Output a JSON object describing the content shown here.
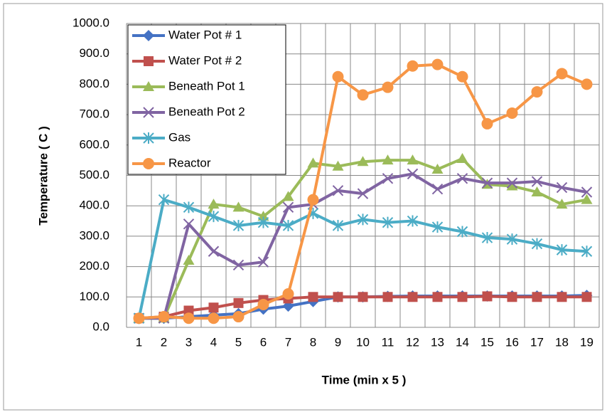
{
  "chart_data": {
    "type": "line",
    "y_label": "Temperature ( C )",
    "x_label": "Time (min x 5 )",
    "categories": [
      "1",
      "2",
      "3",
      "4",
      "5",
      "6",
      "7",
      "8",
      "9",
      "10",
      "11",
      "12",
      "13",
      "14",
      "15",
      "16",
      "17",
      "18",
      "19"
    ],
    "series": [
      {
        "name": "Water Pot # 1",
        "color": "#4472c4",
        "marker": "diamond",
        "values": [
          30,
          30,
          35,
          40,
          45,
          60,
          70,
          85,
          100,
          100,
          102,
          103,
          103,
          103,
          103,
          103,
          103,
          103,
          105
        ]
      },
      {
        "name": "Water Pot # 2",
        "color": "#c0504d",
        "marker": "square",
        "values": [
          30,
          35,
          55,
          65,
          80,
          90,
          95,
          100,
          100,
          100,
          100,
          100,
          100,
          100,
          102,
          100,
          100,
          100,
          100
        ]
      },
      {
        "name": "Beneath Pot 1",
        "color": "#9bbb59",
        "marker": "triangle",
        "values": [
          30,
          30,
          220,
          405,
          395,
          365,
          430,
          540,
          530,
          545,
          550,
          550,
          520,
          555,
          470,
          465,
          445,
          405,
          420
        ]
      },
      {
        "name": "Beneath Pot 2",
        "color": "#8064a2",
        "marker": "x",
        "values": [
          30,
          30,
          340,
          250,
          205,
          215,
          395,
          405,
          450,
          440,
          490,
          505,
          455,
          490,
          475,
          475,
          480,
          460,
          445
        ]
      },
      {
        "name": "Gas",
        "color": "#4bacc6",
        "marker": "star",
        "values": [
          30,
          420,
          395,
          365,
          335,
          345,
          335,
          375,
          335,
          355,
          345,
          350,
          330,
          315,
          295,
          290,
          275,
          255,
          250
        ]
      },
      {
        "name": "Reactor",
        "color": "#f79646",
        "marker": "circle",
        "values": [
          30,
          35,
          30,
          30,
          35,
          75,
          110,
          420,
          825,
          765,
          790,
          860,
          865,
          825,
          670,
          705,
          775,
          835,
          800
        ]
      }
    ],
    "ylim": [
      0,
      1000
    ],
    "yticks": [
      {
        "value": 0,
        "label": "0.0"
      },
      {
        "value": 100,
        "label": "100.0"
      },
      {
        "value": 200,
        "label": "200.0"
      },
      {
        "value": 300,
        "label": "300.0"
      },
      {
        "value": 400,
        "label": "400.0"
      },
      {
        "value": 500,
        "label": "500.0"
      },
      {
        "value": 600,
        "label": "600.0"
      },
      {
        "value": 700,
        "label": "700.0"
      },
      {
        "value": 800,
        "label": "800.0"
      },
      {
        "value": 900,
        "label": "900.0"
      },
      {
        "value": 1000,
        "label": "1000.0"
      }
    ],
    "grid": true,
    "legend": "upper left"
  }
}
